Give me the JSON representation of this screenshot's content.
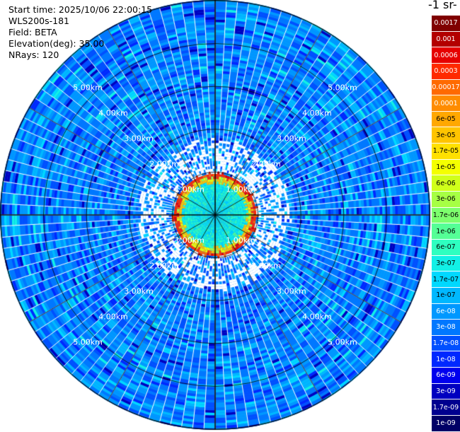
{
  "info": {
    "start_time": "Start time: 2025/10/06 22:00:15",
    "instrument": "WLS200s-181",
    "field": "Field: BETA",
    "elevation": "Elevation(deg): 35.00",
    "nrays": "NRays: 120"
  },
  "colorbar": {
    "title": "-1 sr-",
    "entries": [
      {
        "label": "0.0017",
        "color": "#800000"
      },
      {
        "label": "0.001",
        "color": "#b30000"
      },
      {
        "label": "0.0006",
        "color": "#e60000"
      },
      {
        "label": "0.0003",
        "color": "#ff2a00"
      },
      {
        "label": "0.00017",
        "color": "#ff6a00"
      },
      {
        "label": "0.0001",
        "color": "#ff8c00"
      },
      {
        "label": "6e-05",
        "color": "#ffa800"
      },
      {
        "label": "3e-05",
        "color": "#ffc400"
      },
      {
        "label": "1.7e-05",
        "color": "#ffe000"
      },
      {
        "label": "1e-05",
        "color": "#f4ff00"
      },
      {
        "label": "6e-06",
        "color": "#d0ff1a"
      },
      {
        "label": "3e-06",
        "color": "#a6ff44"
      },
      {
        "label": "1.7e-06",
        "color": "#7dff6d"
      },
      {
        "label": "1e-06",
        "color": "#54ff96"
      },
      {
        "label": "6e-07",
        "color": "#2effc0"
      },
      {
        "label": "3e-07",
        "color": "#12f0e6"
      },
      {
        "label": "1.7e-07",
        "color": "#00d8ff"
      },
      {
        "label": "1e-07",
        "color": "#00b8ff"
      },
      {
        "label": "6e-08",
        "color": "#0098ff"
      },
      {
        "label": "3e-08",
        "color": "#0078ff"
      },
      {
        "label": "1.7e-08",
        "color": "#0050ff"
      },
      {
        "label": "1e-08",
        "color": "#0028ff"
      },
      {
        "label": "6e-09",
        "color": "#0000ee"
      },
      {
        "label": "3e-09",
        "color": "#0000c0"
      },
      {
        "label": "1.7e-09",
        "color": "#00008f"
      },
      {
        "label": "1e-09",
        "color": "#000066"
      }
    ]
  },
  "range_rings": [
    {
      "label": "1.00km",
      "km": 1
    },
    {
      "label": "2.00km",
      "km": 2
    },
    {
      "label": "3.00km",
      "km": 3
    },
    {
      "label": "4.00km",
      "km": 4
    },
    {
      "label": "5.00km",
      "km": 5
    }
  ],
  "scan": {
    "n_rays": 120,
    "max_range_km": 5.0,
    "elevation_deg": 35.0
  }
}
